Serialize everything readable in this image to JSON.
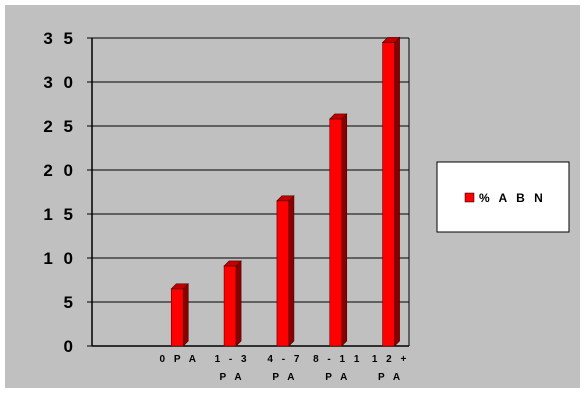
{
  "chart_data": {
    "type": "bar",
    "title": "",
    "xlabel": "",
    "ylabel": "",
    "categories": [
      [
        "",
        ""
      ],
      [
        "0 P A",
        ""
      ],
      [
        "1 - 3",
        "P A"
      ],
      [
        "4 - 7",
        "P A"
      ],
      [
        "8 - 1 1",
        "P A"
      ],
      [
        "1 2  +",
        "P A"
      ]
    ],
    "series": [
      {
        "name": "% A B N",
        "values": [
          null,
          6.5,
          9.1,
          16.5,
          25.8,
          34.5
        ]
      }
    ],
    "yticks": [
      "0",
      "5",
      "1 0",
      "1 5",
      "2 0",
      "2 5",
      "3 0",
      "3 5"
    ],
    "ylim": [
      0,
      35
    ],
    "grid": true,
    "legend_position": "right",
    "colors": {
      "bar_front": "#ff0000",
      "bar_side": "#8a0000",
      "bar_top": "#c00000",
      "plot_background": "#c0c0c0",
      "chart_background": "#c0c0c0",
      "gridline": "#000000"
    }
  }
}
